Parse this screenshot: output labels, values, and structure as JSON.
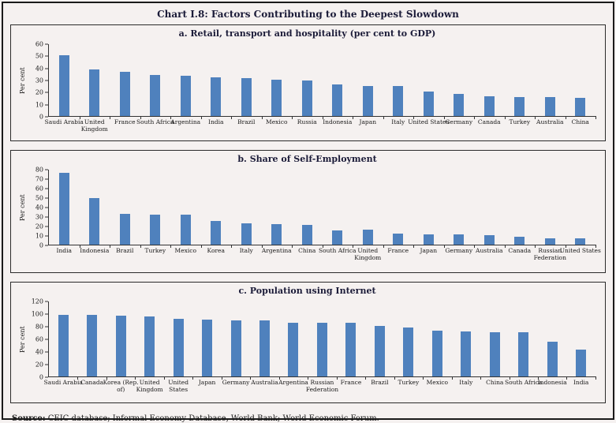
{
  "page": {
    "title": "Chart I.8: Factors Contributing to the Deepest Slowdown",
    "source_label": "Source:",
    "source_text": " CEIC database; Informal Economy Database, World Bank; World Economic Forum."
  },
  "colors": {
    "bar": "#4f81bd",
    "background": "#f5f1f0",
    "frame_border": "#1a1a1a",
    "panel_border": "#2b2b2b",
    "title_text": "#1b1b38",
    "axis_text": "#1a1a1a"
  },
  "chart_data": [
    {
      "type": "bar",
      "title": "a. Retail, transport and hospitality (per cent to GDP)",
      "ylabel": "Per cent",
      "ylim": [
        0,
        60
      ],
      "ytick_step": 10,
      "grid": false,
      "legend": "none",
      "categories": [
        "Saudi Arabia",
        "United Kingdom",
        "France",
        "South Africa",
        "Argentina",
        "India",
        "Brazil",
        "Mexico",
        "Russia",
        "Indonesia",
        "Japan",
        "Italy",
        "United States",
        "Germany",
        "Canada",
        "Turkey",
        "Australia",
        "China"
      ],
      "values": [
        50,
        38.5,
        36.5,
        34,
        33.5,
        32,
        31,
        30,
        29.5,
        26,
        25,
        25,
        20,
        18,
        16.5,
        15.5,
        15.5,
        15
      ]
    },
    {
      "type": "bar",
      "title": "b. Share of Self-Employment",
      "ylabel": "Per cent",
      "ylim": [
        0,
        80
      ],
      "ytick_step": 10,
      "grid": false,
      "legend": "none",
      "categories": [
        "India",
        "Indonesia",
        "Brazil",
        "Turkey",
        "Mexico",
        "Korea",
        "Italy",
        "Argentina",
        "China",
        "South Africa",
        "United Kingdom",
        "France",
        "Japan",
        "Germany",
        "Australia",
        "Canada",
        "Russian Federation",
        "United States"
      ],
      "values": [
        75.5,
        49.5,
        32.5,
        32,
        31.5,
        25,
        22.5,
        21.5,
        20.5,
        15,
        15.5,
        12,
        11,
        10.5,
        10,
        8.5,
        7,
        6.5
      ]
    },
    {
      "type": "bar",
      "title": "c. Population using Internet",
      "ylabel": "Per cent",
      "ylim": [
        0,
        120
      ],
      "ytick_step": 20,
      "grid": false,
      "legend": "none",
      "categories": [
        "Saudi Arabia",
        "Canada",
        "Korea (Rep. of)",
        "United Kingdom",
        "United States",
        "Japan",
        "Germany",
        "Australia",
        "Argentina",
        "Russian Federation",
        "France",
        "Brazil",
        "Turkey",
        "Mexico",
        "Italy",
        "China",
        "South Africa",
        "Indonesia",
        "India"
      ],
      "values": [
        98,
        97,
        96,
        94.5,
        91,
        89.5,
        89,
        88.5,
        85,
        84.5,
        84.5,
        80.5,
        77,
        72,
        71,
        70.5,
        70,
        54.5,
        42
      ]
    }
  ]
}
